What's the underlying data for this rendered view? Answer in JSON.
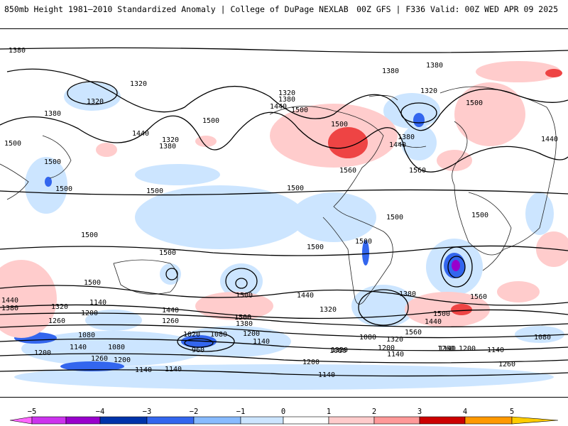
{
  "header": {
    "left_title": "850mb Height 1981–2010 Standardized Anomaly | College of DuPage NEXLAB",
    "right_title": "00Z GFS | F336 Valid: 00Z WED APR 09 2025"
  },
  "map": {
    "contour_levels": [
      "960",
      "1020",
      "1080",
      "1140",
      "1200",
      "1260",
      "1320",
      "1380",
      "1440",
      "1500",
      "1560"
    ],
    "labels": [
      {
        "id": "c1",
        "text": "1380"
      },
      {
        "id": "c2",
        "text": "1320"
      },
      {
        "id": "c3",
        "text": "1320"
      },
      {
        "id": "c4",
        "text": "1380"
      },
      {
        "id": "c5",
        "text": "1440"
      },
      {
        "id": "c6",
        "text": "1500"
      },
      {
        "id": "c7",
        "text": "1500"
      },
      {
        "id": "c8",
        "text": "1500"
      },
      {
        "id": "c9",
        "text": "1320"
      },
      {
        "id": "c10",
        "text": "1380"
      },
      {
        "id": "c11",
        "text": "1500"
      },
      {
        "id": "c12",
        "text": "1320"
      },
      {
        "id": "c13",
        "text": "1380"
      },
      {
        "id": "c14",
        "text": "1440"
      },
      {
        "id": "c15",
        "text": "1500"
      },
      {
        "id": "c16",
        "text": "1500"
      },
      {
        "id": "c17",
        "text": "1560"
      },
      {
        "id": "c18",
        "text": "1380"
      },
      {
        "id": "c19",
        "text": "1320"
      },
      {
        "id": "c20",
        "text": "1380"
      },
      {
        "id": "c21",
        "text": "1500"
      },
      {
        "id": "c22",
        "text": "1440"
      },
      {
        "id": "c23",
        "text": "1380"
      },
      {
        "id": "c24",
        "text": "1560"
      },
      {
        "id": "c25",
        "text": "1440"
      },
      {
        "id": "c26",
        "text": "1500"
      },
      {
        "id": "c27",
        "text": "1500"
      },
      {
        "id": "c28",
        "text": "1500"
      },
      {
        "id": "c29",
        "text": "1500"
      },
      {
        "id": "c30",
        "text": "1500"
      },
      {
        "id": "c31",
        "text": "1500"
      },
      {
        "id": "c32",
        "text": "1500"
      },
      {
        "id": "c33",
        "text": "1500"
      },
      {
        "id": "c34",
        "text": "1500"
      },
      {
        "id": "c35",
        "text": "1500"
      },
      {
        "id": "c36",
        "text": "1500"
      },
      {
        "id": "c37",
        "text": "1440"
      },
      {
        "id": "c38",
        "text": "1380"
      },
      {
        "id": "c39",
        "text": "1560"
      },
      {
        "id": "c40",
        "text": "1440"
      },
      {
        "id": "c41",
        "text": "1380"
      },
      {
        "id": "c42",
        "text": "1320"
      },
      {
        "id": "c43",
        "text": "1140"
      },
      {
        "id": "c44",
        "text": "1200"
      },
      {
        "id": "c45",
        "text": "1260"
      },
      {
        "id": "c46",
        "text": "1440"
      },
      {
        "id": "c47",
        "text": "1500"
      },
      {
        "id": "c48",
        "text": "1380"
      },
      {
        "id": "c49",
        "text": "1320"
      },
      {
        "id": "c50",
        "text": "1500"
      },
      {
        "id": "c51",
        "text": "1440"
      },
      {
        "id": "c52",
        "text": "1560"
      },
      {
        "id": "c53",
        "text": "1320"
      },
      {
        "id": "c54",
        "text": "1260"
      },
      {
        "id": "c55",
        "text": "1080"
      },
      {
        "id": "c56",
        "text": "1020"
      },
      {
        "id": "c57",
        "text": "1080"
      },
      {
        "id": "c58",
        "text": "1200"
      },
      {
        "id": "c59",
        "text": "1140"
      },
      {
        "id": "c60",
        "text": "960"
      },
      {
        "id": "c61",
        "text": "1080"
      },
      {
        "id": "c62",
        "text": "1200"
      },
      {
        "id": "c63",
        "text": "1140"
      },
      {
        "id": "c64",
        "text": "1200"
      },
      {
        "id": "c65",
        "text": "1080"
      },
      {
        "id": "c66",
        "text": "1140"
      },
      {
        "id": "c67",
        "text": "1260"
      },
      {
        "id": "c68",
        "text": "1200"
      },
      {
        "id": "c69",
        "text": "1140"
      },
      {
        "id": "c70",
        "text": "1140"
      },
      {
        "id": "c71",
        "text": "1200"
      },
      {
        "id": "c72",
        "text": "1140"
      },
      {
        "id": "c73",
        "text": "1080"
      },
      {
        "id": "c74",
        "text": "1200"
      },
      {
        "id": "c75",
        "text": "1140"
      },
      {
        "id": "c76",
        "text": "1260"
      },
      {
        "id": "c77",
        "text": "1320"
      },
      {
        "id": "c78",
        "text": "1080"
      },
      {
        "id": "c79",
        "text": "1260"
      },
      {
        "id": "c80",
        "text": "1140"
      }
    ]
  },
  "colorbar": {
    "ticks": [
      "−5",
      "−4",
      "−3",
      "−2",
      "−1",
      "0",
      "1",
      "2",
      "3",
      "4",
      "5"
    ],
    "colors": [
      "#ff66ff",
      "#9900cc",
      "#0033aa",
      "#3366ee",
      "#88bbff",
      "#cce5ff",
      "#ffffff",
      "#ffcccc",
      "#ff9999",
      "#ee4444",
      "#cc0000",
      "#ff9900",
      "#ffcc00"
    ]
  }
}
